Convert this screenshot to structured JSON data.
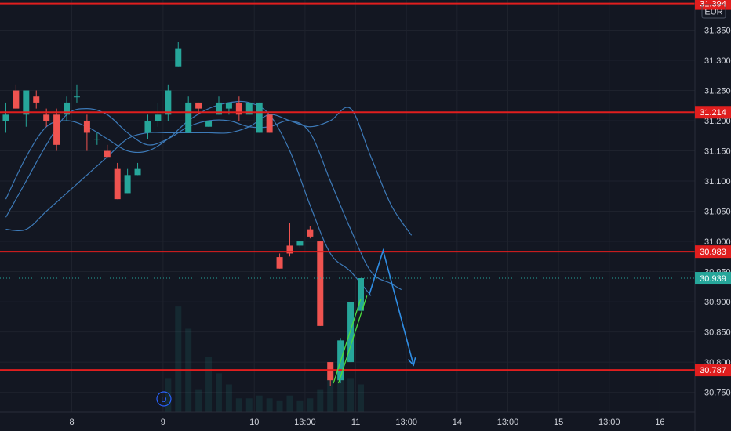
{
  "currency": "EUR",
  "colors": {
    "background": "#131722",
    "grid": "#1e222d",
    "bull": "#26a69a",
    "bear": "#ef5350",
    "level_line": "#e01e1e",
    "ma": "#3d7ab8",
    "arrow": "#2f8de4",
    "trend": "#4cdc3c",
    "text": "#d1d4dc",
    "last_price": "#26a69a"
  },
  "badge": {
    "label": "D"
  },
  "chart_data": {
    "type": "candlestick",
    "title": "",
    "ylim": [
      30.717,
      31.4
    ],
    "y_ticks": [
      "31.350",
      "31.300",
      "31.250",
      "31.200",
      "31.150",
      "31.100",
      "31.050",
      "31.000",
      "30.950",
      "30.900",
      "30.850",
      "30.800",
      "30.750"
    ],
    "x_ticks": [
      {
        "label": "8",
        "x": 0.5
      },
      {
        "label": "9",
        "x": 9.5
      },
      {
        "label": "10",
        "x": 18.5
      },
      {
        "label": "13:00",
        "x": 23.5
      },
      {
        "label": "11",
        "x": 28.5
      },
      {
        "label": "13:00",
        "x": 33.5
      },
      {
        "label": "14",
        "x": 38.5
      },
      {
        "label": "13:00",
        "x": 43.5
      },
      {
        "label": "15",
        "x": 48.5
      },
      {
        "label": "13:00",
        "x": 53.5
      },
      {
        "label": "16",
        "x": 58.5
      }
    ],
    "horizontal_levels": [
      {
        "label": "31.394",
        "value": 31.394
      },
      {
        "label": "31.214",
        "value": 31.214
      },
      {
        "label": "30.983",
        "value": 30.983
      },
      {
        "label": "30.787",
        "value": 30.787
      }
    ],
    "last_price": {
      "label": "30.939",
      "value": 30.939
    },
    "candles": [
      {
        "x": -6,
        "o": 31.2,
        "h": 31.23,
        "l": 31.18,
        "c": 31.21
      },
      {
        "x": -5,
        "o": 31.25,
        "h": 31.26,
        "l": 31.22,
        "c": 31.22
      },
      {
        "x": -4,
        "o": 31.21,
        "h": 31.25,
        "l": 31.19,
        "c": 31.25
      },
      {
        "x": -3,
        "o": 31.24,
        "h": 31.25,
        "l": 31.22,
        "c": 31.23
      },
      {
        "x": -2,
        "o": 31.21,
        "h": 31.22,
        "l": 31.19,
        "c": 31.2
      },
      {
        "x": -1,
        "o": 31.21,
        "h": 31.22,
        "l": 31.15,
        "c": 31.16
      },
      {
        "x": 0,
        "o": 31.21,
        "h": 31.24,
        "l": 31.2,
        "c": 31.23
      },
      {
        "x": 1,
        "o": 31.24,
        "h": 31.26,
        "l": 31.23,
        "c": 31.24
      },
      {
        "x": 2,
        "o": 31.2,
        "h": 31.21,
        "l": 31.15,
        "c": 31.18
      },
      {
        "x": 3,
        "o": 31.17,
        "h": 31.18,
        "l": 31.16,
        "c": 31.17
      },
      {
        "x": 4,
        "o": 31.15,
        "h": 31.16,
        "l": 31.14,
        "c": 31.14
      },
      {
        "x": 5,
        "o": 31.12,
        "h": 31.13,
        "l": 31.07,
        "c": 31.07
      },
      {
        "x": 6,
        "o": 31.08,
        "h": 31.12,
        "l": 31.08,
        "c": 31.11
      },
      {
        "x": 7,
        "o": 31.11,
        "h": 31.13,
        "l": 31.11,
        "c": 31.12
      },
      {
        "x": 8,
        "o": 31.18,
        "h": 31.21,
        "l": 31.17,
        "c": 31.2
      },
      {
        "x": 9,
        "o": 31.2,
        "h": 31.23,
        "l": 31.19,
        "c": 31.21
      },
      {
        "x": 10,
        "o": 31.21,
        "h": 31.26,
        "l": 31.2,
        "c": 31.25
      },
      {
        "x": 11,
        "o": 31.29,
        "h": 31.33,
        "l": 31.29,
        "c": 31.32
      },
      {
        "x": 12,
        "o": 31.18,
        "h": 31.24,
        "l": 31.18,
        "c": 31.23
      },
      {
        "x": 13,
        "o": 31.23,
        "h": 31.23,
        "l": 31.21,
        "c": 31.22
      },
      {
        "x": 14,
        "o": 31.19,
        "h": 31.2,
        "l": 31.19,
        "c": 31.2
      },
      {
        "x": 15,
        "o": 31.21,
        "h": 31.24,
        "l": 31.21,
        "c": 31.23
      },
      {
        "x": 16,
        "o": 31.22,
        "h": 31.23,
        "l": 31.21,
        "c": 31.23
      },
      {
        "x": 17,
        "o": 31.23,
        "h": 31.24,
        "l": 31.2,
        "c": 31.21
      },
      {
        "x": 18,
        "o": 31.21,
        "h": 31.23,
        "l": 31.21,
        "c": 31.23
      },
      {
        "x": 19,
        "o": 31.18,
        "h": 31.23,
        "l": 31.18,
        "c": 31.23
      },
      {
        "x": 20,
        "o": 31.21,
        "h": 31.21,
        "l": 31.18,
        "c": 31.18
      },
      {
        "x": 21,
        "o": 30.974,
        "h": 30.98,
        "l": 30.955,
        "c": 30.955
      },
      {
        "x": 22,
        "o": 30.993,
        "h": 31.03,
        "l": 30.975,
        "c": 30.98
      },
      {
        "x": 23,
        "o": 30.993,
        "h": 31.0,
        "l": 30.99,
        "c": 31.0
      },
      {
        "x": 24,
        "o": 31.02,
        "h": 31.025,
        "l": 31.005,
        "c": 31.008
      },
      {
        "x": 25,
        "o": 31.0,
        "h": 31.0,
        "l": 30.86,
        "c": 30.86
      },
      {
        "x": 26,
        "o": 30.8,
        "h": 30.8,
        "l": 30.76,
        "c": 30.77
      },
      {
        "x": 27,
        "o": 30.77,
        "h": 30.84,
        "l": 30.765,
        "c": 30.836
      },
      {
        "x": 28,
        "o": 30.8,
        "h": 30.9,
        "l": 30.8,
        "c": 30.9
      },
      {
        "x": 29,
        "o": 30.885,
        "h": 30.939,
        "l": 30.885,
        "c": 30.939
      }
    ],
    "volume": [
      {
        "x": 10,
        "v": 0.12
      },
      {
        "x": 11,
        "v": 0.38
      },
      {
        "x": 12,
        "v": 0.3
      },
      {
        "x": 13,
        "v": 0.08
      },
      {
        "x": 14,
        "v": 0.2
      },
      {
        "x": 15,
        "v": 0.14
      },
      {
        "x": 16,
        "v": 0.1
      },
      {
        "x": 17,
        "v": 0.05
      },
      {
        "x": 18,
        "v": 0.05
      },
      {
        "x": 19,
        "v": 0.06
      },
      {
        "x": 20,
        "v": 0.05
      },
      {
        "x": 21,
        "v": 0.04
      },
      {
        "x": 22,
        "v": 0.06
      },
      {
        "x": 23,
        "v": 0.04
      },
      {
        "x": 24,
        "v": 0.05
      },
      {
        "x": 25,
        "v": 0.08
      },
      {
        "x": 26,
        "v": 0.14
      },
      {
        "x": 27,
        "v": 0.16
      },
      {
        "x": 28,
        "v": 0.12
      },
      {
        "x": 29,
        "v": 0.1
      }
    ],
    "moving_averages": [
      {
        "points": [
          [
            -6,
            31.04
          ],
          [
            -4,
            31.1
          ],
          [
            -2,
            31.16
          ],
          [
            0,
            31.21
          ],
          [
            2,
            31.22
          ],
          [
            4,
            31.21
          ],
          [
            6,
            31.18
          ],
          [
            8,
            31.16
          ],
          [
            10,
            31.17
          ],
          [
            12,
            31.19
          ],
          [
            14,
            31.2
          ],
          [
            16,
            31.2
          ],
          [
            18,
            31.19
          ],
          [
            20,
            31.19
          ],
          [
            22,
            31.2
          ],
          [
            24,
            31.18
          ],
          [
            26,
            31.1
          ],
          [
            28,
            31.02
          ],
          [
            30,
            30.95
          ],
          [
            32,
            30.93
          ],
          [
            33,
            30.92
          ]
        ]
      },
      {
        "points": [
          [
            -6,
            31.07
          ],
          [
            -4,
            31.14
          ],
          [
            -2,
            31.19
          ],
          [
            0,
            31.2
          ],
          [
            2,
            31.19
          ],
          [
            4,
            31.17
          ],
          [
            6,
            31.15
          ],
          [
            8,
            31.15
          ],
          [
            10,
            31.17
          ],
          [
            12,
            31.2
          ],
          [
            14,
            31.22
          ],
          [
            16,
            31.23
          ],
          [
            18,
            31.23
          ],
          [
            20,
            31.21
          ],
          [
            22,
            31.15
          ],
          [
            24,
            31.06
          ],
          [
            26,
            30.98
          ],
          [
            28,
            30.95
          ],
          [
            30,
            30.91
          ]
        ]
      },
      {
        "points": [
          [
            -6,
            31.02
          ],
          [
            -4,
            31.02
          ],
          [
            -2,
            31.05
          ],
          [
            0,
            31.08
          ],
          [
            2,
            31.11
          ],
          [
            4,
            31.14
          ],
          [
            6,
            31.17
          ],
          [
            8,
            31.18
          ],
          [
            10,
            31.18
          ],
          [
            12,
            31.18
          ],
          [
            14,
            31.18
          ],
          [
            16,
            31.18
          ],
          [
            18,
            31.19
          ],
          [
            20,
            31.21
          ],
          [
            22,
            31.2
          ],
          [
            24,
            31.19
          ],
          [
            26,
            31.2
          ],
          [
            28,
            31.22
          ],
          [
            30,
            31.14
          ],
          [
            32,
            31.06
          ],
          [
            34,
            31.01
          ]
        ]
      }
    ],
    "annotations": {
      "arrow_path": [
        [
          29.8,
          30.91
        ],
        [
          31.2,
          30.985
        ],
        [
          34.2,
          30.795
        ]
      ],
      "trend_lines": [
        [
          [
            26.3,
            30.765
          ],
          [
            29.0,
            30.905
          ]
        ],
        [
          [
            26.8,
            30.765
          ],
          [
            29.6,
            30.91
          ]
        ]
      ]
    }
  }
}
